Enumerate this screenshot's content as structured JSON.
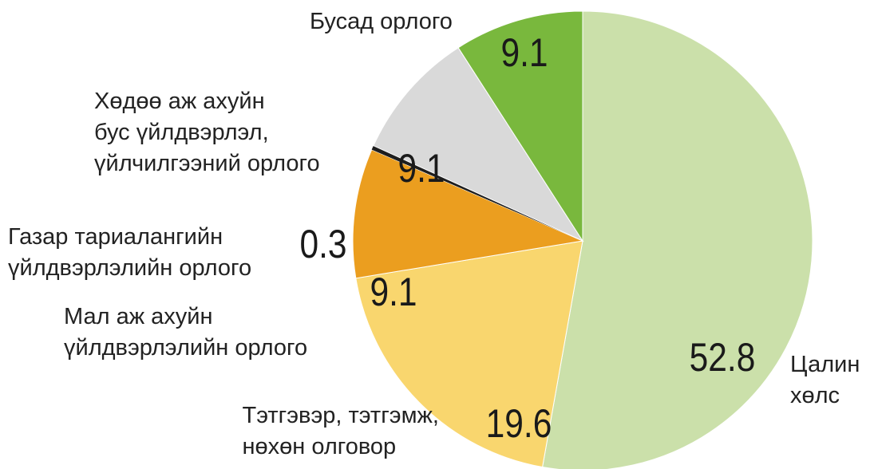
{
  "chart_data": {
    "type": "pie",
    "categories": [
      "Цалин\nхөлс",
      "Тэтгэвэр, тэтгэмж,\nнөхөн олговор",
      "Мал аж ахуйн\nүйлдвэрлэлийн орлого",
      "Газар тариалангийн\nүйлдвэрлэлийн орлого",
      "Хөдөө аж ахуйн\nбус үйлдвэрлэл,\nүйлчилгээний орлого",
      "Бусад орлого"
    ],
    "values": [
      52.8,
      19.6,
      9.1,
      0.3,
      9.1,
      9.1
    ],
    "colors": [
      "#cbe0aa",
      "#f9d66e",
      "#eb9e1f",
      "#1e1e1e",
      "#d9d9d9",
      "#79b83d"
    ]
  }
}
